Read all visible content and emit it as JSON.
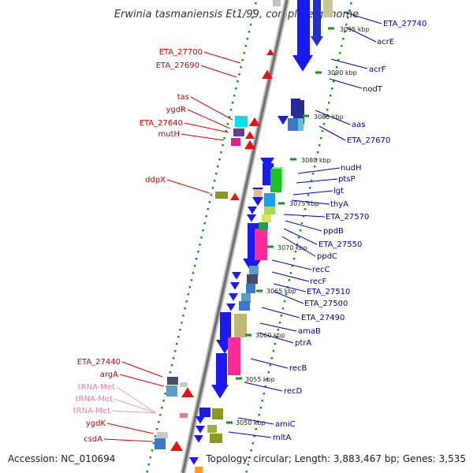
{
  "title": "Erwinia tasmaniensis Et1/99, complete genome",
  "accession": "Accession: NC_010694",
  "topology": "Topology: circular; Length: 3,883,467 bp; Genes: 3,535",
  "colors": {
    "minus_label": "#cc0000",
    "plus_label": "#0000aa",
    "trna_label": "#e87aa8",
    "backbone": "#777777",
    "tick": "#119911"
  },
  "kbp_ticks": [
    "3095 kbp",
    "3090 kbp",
    "3085 kbp",
    "3080 kbp",
    "3075 kbp",
    "3070 kbp",
    "3065 kbp",
    "3060 kbp",
    "3055 kbp",
    "3050 kbp"
  ],
  "plus_labels": [
    "ETA_27740",
    "acrE",
    "acrF",
    "nodT",
    "aas",
    "ETA_27670",
    "nudH",
    "ptsP",
    "lgt",
    "thyA",
    "ETA_27570",
    "ppdB",
    "ETA_27550",
    "ppdC",
    "recC",
    "recF",
    "ETA_27510",
    "ETA_27500",
    "ETA_27490",
    "amaB",
    "ptrA",
    "recB",
    "recD",
    "amiC",
    "mltA"
  ],
  "minus_labels": [
    "ETA_27700",
    "ETA_27690",
    "tas",
    "ygdR",
    "ETA_27640",
    "mutH",
    "ddpX",
    "ETA_27440",
    "argA",
    "ygdK",
    "csdA"
  ],
  "trna_labels": [
    "tRNA-Met",
    "tRNA-Met",
    "tRNA-Met"
  ]
}
